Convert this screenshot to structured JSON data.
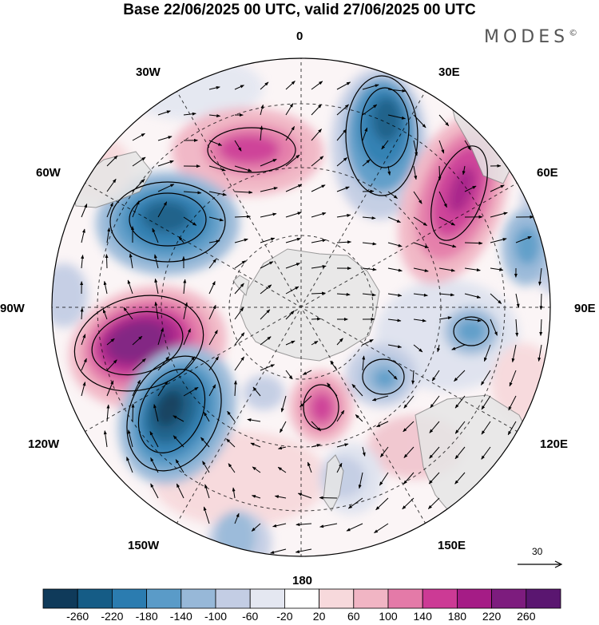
{
  "header": {
    "title": "Base 22/06/2025 00 UTC, valid 27/06/2025 00 UTC",
    "brand": "MODES",
    "brand_mark": "©"
  },
  "map": {
    "projection": "south-polar-stereographic",
    "longitude_labels": {
      "top": "0",
      "top_right": "30E",
      "right_upper": "60E",
      "right": "90E",
      "right_lower": "120E",
      "bottom_right": "150E",
      "bottom": "180",
      "bottom_left": "150W",
      "left_lower": "120W",
      "left": "90W",
      "left_upper": "60W",
      "top_left": "30W"
    },
    "vector_reference": "30"
  },
  "colorbar": {
    "labels": [
      "-260",
      "-220",
      "-180",
      "-140",
      "-100",
      "-60",
      "-20",
      "20",
      "60",
      "100",
      "140",
      "180",
      "220",
      "260"
    ],
    "colors": [
      "#0f3a5a",
      "#155c86",
      "#2b7cb0",
      "#5a9bc8",
      "#97b8d8",
      "#c3cde4",
      "#e4e7f1",
      "#ffffff",
      "#f7d9dc",
      "#f1b5c4",
      "#e47aa8",
      "#cc3a95",
      "#a51c86",
      "#7d1c7e",
      "#5a1670"
    ]
  },
  "colors": {
    "land": "#e8e8e8",
    "coast": "#8a8a8a"
  }
}
